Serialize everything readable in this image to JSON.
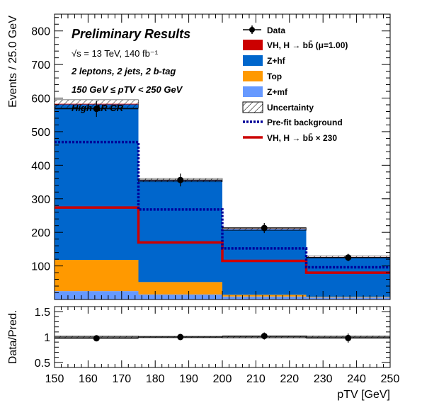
{
  "chart_data": {
    "type": "bar",
    "subtype": "stacked histogram with data points and ratio panel",
    "title": "Preliminary Results",
    "annotations": [
      {
        "text": "√s = 13 TeV, 140 fb⁻¹"
      },
      {
        "text": "2 leptons, 2 jets, 2 b-tag"
      },
      {
        "text": "150 GeV ≤ pTV < 250 GeV"
      },
      {
        "text": "High ΔR CR"
      }
    ],
    "ylabel": "Events / 25.0 GeV",
    "xlabel": "pTV [GeV]",
    "ratio_ylabel": "Data/Pred.",
    "xlim": [
      150,
      250
    ],
    "ylim": [
      0,
      850
    ],
    "ratio_ylim": [
      0.4,
      1.6
    ],
    "bin_edges": [
      150,
      175,
      200,
      225,
      250
    ],
    "stack": [
      {
        "name": "Z+mf",
        "color": "#6699ff",
        "values": [
          25,
          15,
          9,
          6
        ]
      },
      {
        "name": "Top",
        "color": "#ff9900",
        "values": [
          93,
          37,
          5,
          2
        ]
      },
      {
        "name": "Z+hf",
        "color": "#0066cc",
        "values": [
          463,
          302,
          195,
          118
        ]
      },
      {
        "name": "VH, H → bb̄ (μ=1.00)",
        "color": "#cc0000",
        "values": [
          2,
          1.5,
          1,
          0.8
        ]
      }
    ],
    "total_prediction": [
      583,
      355.5,
      210,
      126.8
    ],
    "uncertainty_band": [
      12,
      5,
      4,
      3
    ],
    "data": {
      "name": "Data",
      "x": [
        162.5,
        187.5,
        212.5,
        237.5
      ],
      "y": [
        568,
        356,
        213,
        125
      ],
      "err": [
        24,
        19,
        15,
        11
      ]
    },
    "prefit_background": {
      "name": "Pre-fit background",
      "values": [
        469,
        268,
        152,
        96
      ]
    },
    "signal_scaled": {
      "name": "VH, H → bb̄ × 230",
      "values": [
        274,
        170,
        115,
        80
      ]
    },
    "ratio": {
      "values": [
        0.975,
        1.0,
        1.02,
        0.98
      ],
      "errors": [
        0.04,
        0.05,
        0.07,
        0.09
      ],
      "band": [
        0.02,
        0.015,
        0.02,
        0.025
      ]
    },
    "xticks": [
      150,
      160,
      170,
      180,
      190,
      200,
      210,
      220,
      230,
      240,
      250
    ],
    "yticks": [
      100,
      200,
      300,
      400,
      500,
      600,
      700,
      800
    ],
    "ratio_yticks": [
      0.5,
      1,
      1.5
    ],
    "ratio_ytick_labels": [
      "0.5",
      "1",
      "1.5"
    ],
    "legend": {
      "placement": "top-right",
      "entries": [
        "Data",
        "VH, H → bb̄ (μ=1.00)",
        "Z+hf",
        "Top",
        "Z+mf",
        "Uncertainty",
        "Pre-fit background",
        "VH, H → bb̄ × 230"
      ]
    }
  }
}
